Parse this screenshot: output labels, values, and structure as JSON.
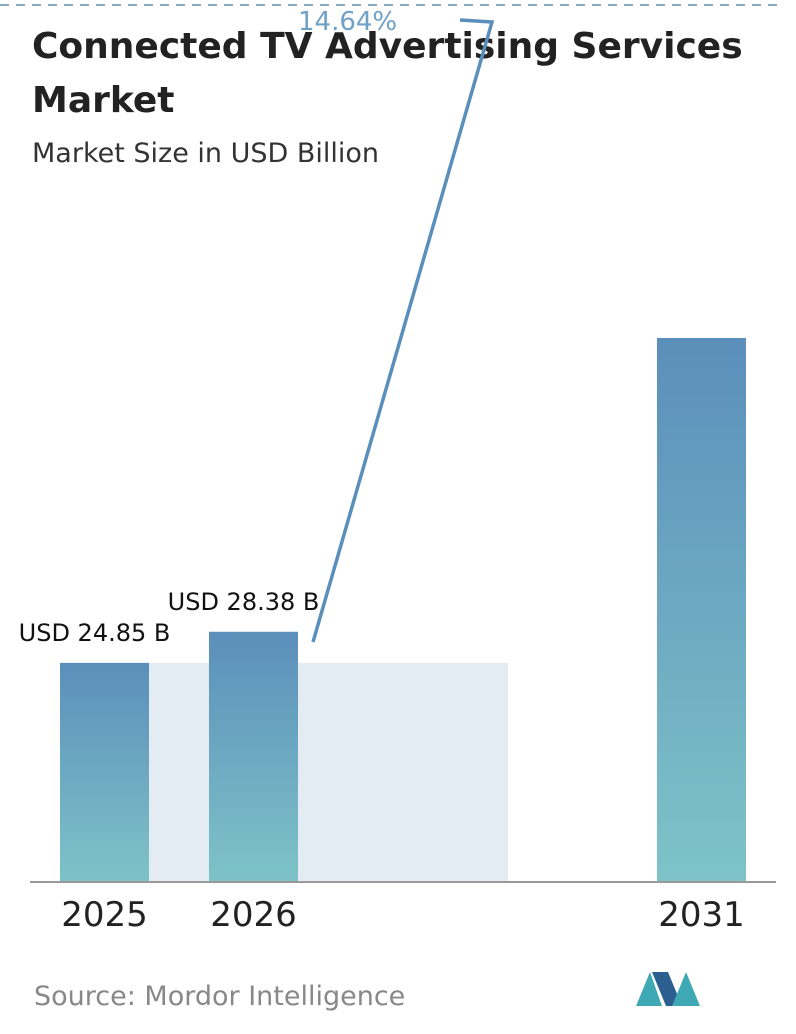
{
  "chart_data": {
    "type": "bar",
    "title": [
      "Connected TV Advertising Services",
      "Market"
    ],
    "subtitle": "Market Size in USD Billion",
    "categories": [
      "2025",
      "2026",
      "2031"
    ],
    "values": [
      24.85,
      28.38,
      61.7
    ],
    "value_labels": [
      "USD 24.85 B",
      "USD 28.38 B",
      null
    ],
    "annotations": [
      {
        "text": "14.64%"
      }
    ],
    "source": "Source:  Mordor Intelligence"
  }
}
